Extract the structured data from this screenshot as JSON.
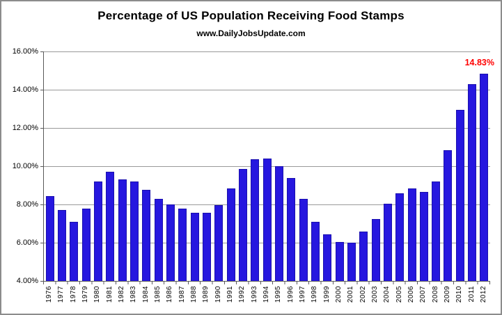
{
  "chart_data": {
    "type": "bar",
    "title": "Percentage of US Population Receiving Food Stamps",
    "subtitle": "www.DailyJobsUpdate.com",
    "categories": [
      "1976",
      "1977",
      "1978",
      "1979",
      "1980",
      "1981",
      "1982",
      "1983",
      "1984",
      "1985",
      "1986",
      "1987",
      "1988",
      "1989",
      "1990",
      "1991",
      "1992",
      "1993",
      "1994",
      "1995",
      "1996",
      "1997",
      "1998",
      "1999",
      "2000",
      "2001",
      "2002",
      "2003",
      "2004",
      "2005",
      "2006",
      "2007",
      "2008",
      "2009",
      "2010",
      "2011",
      "2012"
    ],
    "values": [
      8.45,
      7.7,
      7.1,
      7.8,
      9.2,
      9.7,
      9.3,
      9.2,
      8.75,
      8.3,
      8.0,
      7.8,
      7.55,
      7.55,
      7.95,
      8.85,
      9.85,
      10.35,
      10.4,
      10.0,
      9.4,
      8.3,
      7.1,
      6.45,
      6.05,
      6.0,
      6.6,
      7.25,
      8.05,
      8.6,
      8.85,
      8.65,
      9.2,
      10.85,
      12.95,
      14.3,
      14.83
    ],
    "xlabel": "",
    "ylabel": "",
    "ylim": [
      4,
      16
    ],
    "yticks": [
      {
        "label": "16.00%",
        "value": 16
      },
      {
        "label": "14.00%",
        "value": 14
      },
      {
        "label": "12.00%",
        "value": 12
      },
      {
        "label": "10.00%",
        "value": 10
      },
      {
        "label": "8.00%",
        "value": 8
      },
      {
        "label": "6.00%",
        "value": 6
      },
      {
        "label": "4.00%",
        "value": 4
      }
    ],
    "grid": "horizontal",
    "legend": "none",
    "annotation": {
      "text": "14.83%",
      "target_category": "2012"
    },
    "colors": {
      "bar": "#2617df",
      "bar_border": "#1a10ad",
      "gridline": "#999999",
      "axis": "#595959",
      "frame_border": "#8c8c8c",
      "annotation": "#ff0000"
    }
  }
}
